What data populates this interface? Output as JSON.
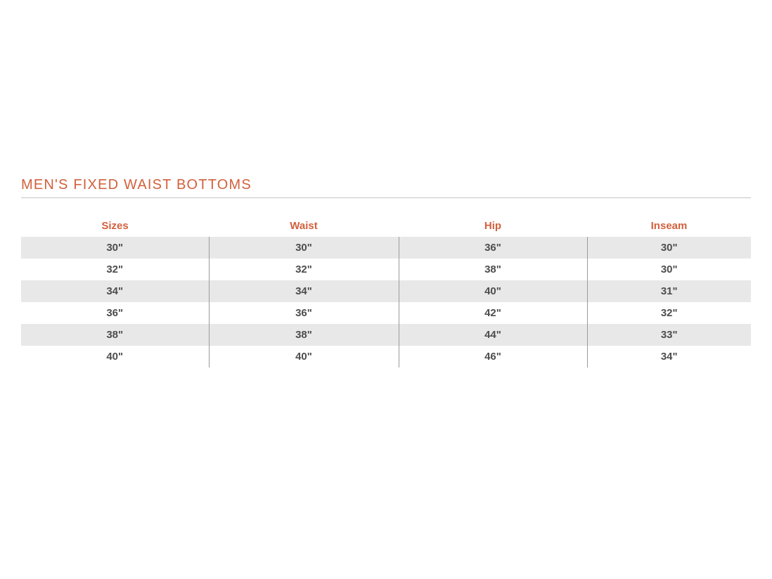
{
  "colors": {
    "accent_orange": "#d2603c",
    "divider_gray": "#c6c6c6",
    "row_alt": "#e8e8e9",
    "cell_text": "#4d4d4d",
    "col_divider": "#9a9a9a",
    "page_background": "#ffffff"
  },
  "section": {
    "title": "MEN'S FIXED WAIST BOTTOMS"
  },
  "table": {
    "columns": [
      "Sizes",
      "Waist",
      "Hip",
      "Inseam"
    ],
    "rows": [
      [
        "30\"",
        "30\"",
        "36\"",
        "30\""
      ],
      [
        "32\"",
        "32\"",
        "38\"",
        "30\""
      ],
      [
        "34\"",
        "34\"",
        "40\"",
        "31\""
      ],
      [
        "36\"",
        "36\"",
        "42\"",
        "32\""
      ],
      [
        "38\"",
        "38\"",
        "44\"",
        "33\""
      ],
      [
        "40\"",
        "40\"",
        "46\"",
        "34\""
      ]
    ]
  }
}
